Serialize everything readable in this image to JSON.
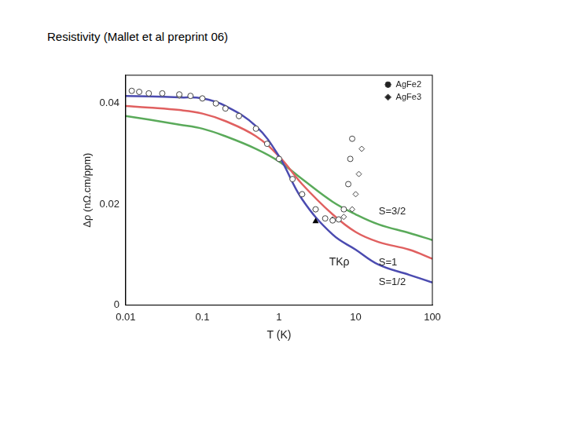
{
  "chart_data": {
    "type": "scatter",
    "title": "Resistivity (Mallet et al preprint 06)",
    "x_label": "T (K)",
    "y_label": "Δρ (nΩ.cm/ppm)",
    "log": "x",
    "grid": false,
    "legend": "upper right",
    "xlim": [
      0.01,
      100
    ],
    "xticks": [
      0.01,
      0.1,
      1,
      10,
      100
    ],
    "ylim": [
      0,
      0.0456
    ],
    "yticks": [
      0,
      0.02,
      0.04
    ],
    "series": [
      {
        "name": "AgFe2",
        "type": "scatter",
        "marker": "circle",
        "color": "#444444",
        "x": [
          0.012,
          0.015,
          0.02,
          0.03,
          0.05,
          0.07,
          0.1,
          0.15,
          0.2,
          0.3,
          0.5,
          0.7,
          1,
          1.5,
          2,
          3,
          4,
          5,
          6,
          7,
          8,
          8.5,
          9
        ],
        "values": [
          0.0425,
          0.0423,
          0.042,
          0.042,
          0.0418,
          0.0415,
          0.041,
          0.04,
          0.039,
          0.0375,
          0.035,
          0.032,
          0.029,
          0.025,
          0.022,
          0.019,
          0.0172,
          0.0168,
          0.017,
          0.019,
          0.024,
          0.029,
          0.033
        ]
      },
      {
        "name": "AgFe3",
        "type": "scatter",
        "marker": "diamond",
        "color": "#444444",
        "x": [
          0.05,
          0.1,
          0.3,
          1,
          2,
          3,
          5,
          7,
          9,
          10,
          11,
          12
        ],
        "values": [
          0.0415,
          0.041,
          0.0375,
          0.029,
          0.022,
          0.019,
          0.017,
          0.0175,
          0.019,
          0.022,
          0.026,
          0.031
        ]
      },
      {
        "name": "S=1/2",
        "type": "line",
        "color": "#4b4bb0",
        "label_at": [
          20,
          0.0045
        ],
        "x": [
          0.01,
          0.02,
          0.05,
          0.1,
          0.2,
          0.5,
          1,
          2,
          5,
          10,
          20,
          50,
          100
        ],
        "values": [
          0.0415,
          0.0414,
          0.0412,
          0.041,
          0.0395,
          0.0355,
          0.0295,
          0.021,
          0.014,
          0.011,
          0.008,
          0.006,
          0.0045
        ]
      },
      {
        "name": "S=1",
        "type": "line",
        "color": "#e06060",
        "label_at": [
          20,
          0.0085
        ],
        "x": [
          0.01,
          0.02,
          0.05,
          0.1,
          0.2,
          0.5,
          1,
          2,
          5,
          10,
          20,
          50,
          100
        ],
        "values": [
          0.0395,
          0.0392,
          0.0387,
          0.038,
          0.0365,
          0.0335,
          0.0295,
          0.024,
          0.018,
          0.0145,
          0.0125,
          0.011,
          0.0092
        ]
      },
      {
        "name": "S=3/2",
        "type": "line",
        "color": "#5aaa5a",
        "label_at": [
          20,
          0.0185
        ],
        "x": [
          0.01,
          0.02,
          0.05,
          0.1,
          0.2,
          0.5,
          1,
          2,
          5,
          10,
          20,
          50,
          100
        ],
        "values": [
          0.0375,
          0.0368,
          0.0358,
          0.035,
          0.0335,
          0.031,
          0.0285,
          0.025,
          0.0205,
          0.018,
          0.016,
          0.0143,
          0.0129
        ]
      }
    ],
    "annotations": [
      {
        "text": "TKρ",
        "x": 4.5,
        "y": 0.0085,
        "marker": "triangle",
        "marker_x": 3,
        "marker_y": 0.0167
      }
    ]
  }
}
